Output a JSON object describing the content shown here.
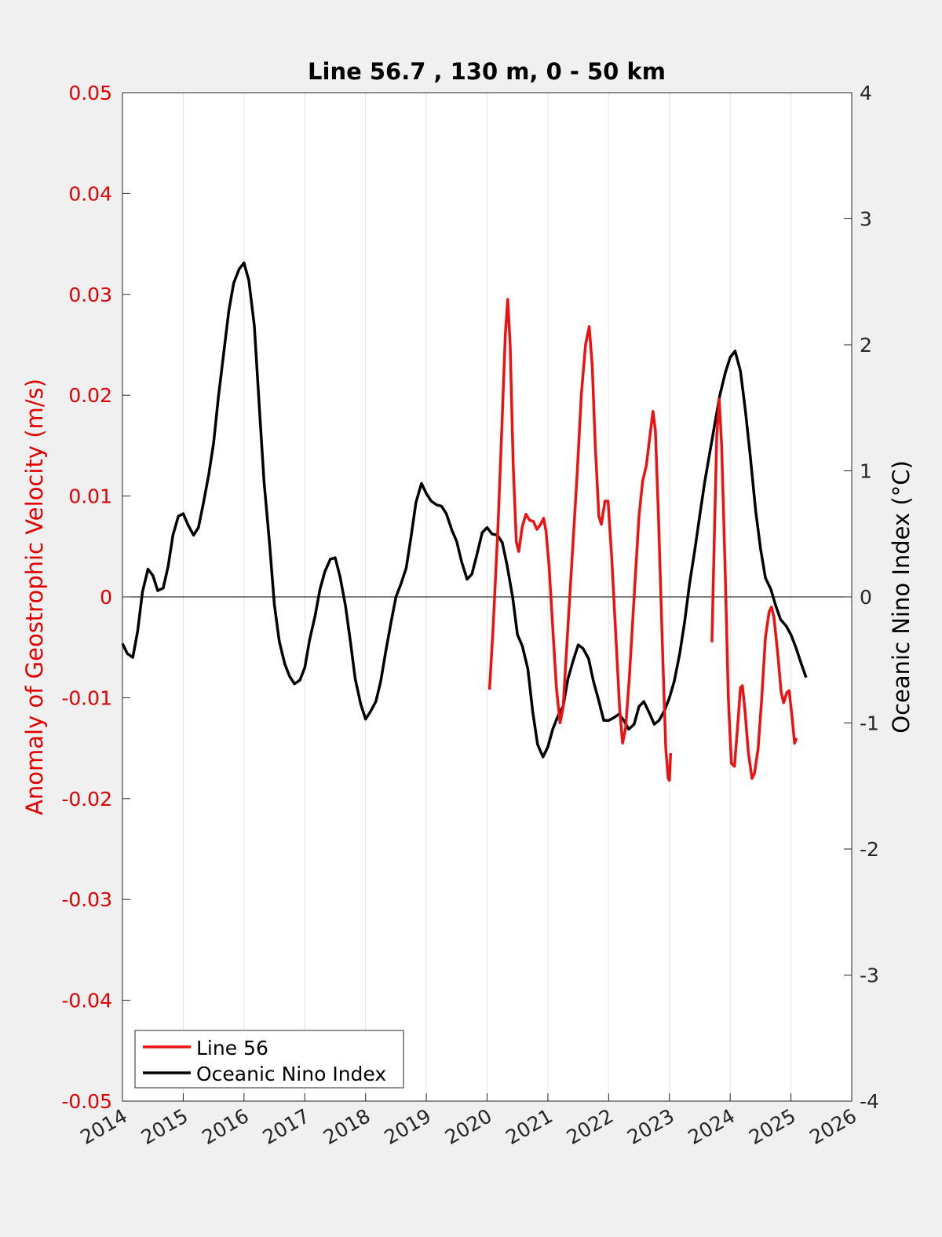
{
  "chart_data": {
    "type": "line",
    "title": "Line 56.7 , 130 m, 0 - 50 km",
    "xlabel": "",
    "ylabel_left": "Anomaly of Geostrophic Velocity (m/s)",
    "ylabel_right": "Oceanic Nino Index (°C)",
    "xlim": [
      2014,
      2026
    ],
    "ylim_left": [
      -0.05,
      0.05
    ],
    "ylim_right": [
      -4,
      4
    ],
    "x_ticks": [
      "2014",
      "2015",
      "2016",
      "2017",
      "2018",
      "2019",
      "2020",
      "2021",
      "2022",
      "2023",
      "2024",
      "2025",
      "2026"
    ],
    "y_left_ticks": [
      "0.05",
      "0.04",
      "0.03",
      "0.02",
      "0.01",
      "0",
      "-0.01",
      "-0.02",
      "-0.03",
      "-0.04",
      "-0.05"
    ],
    "y_right_ticks": [
      "4",
      "3",
      "2",
      "1",
      "0",
      "-1",
      "-2",
      "-3",
      "-4"
    ],
    "grid": "vertical",
    "legend_position": "bottom-left",
    "colors": {
      "left_axis": "#e00000",
      "line56": "#ee1111",
      "oni": "#000000",
      "background": "#f0f0f0",
      "plot": "#ffffff"
    },
    "series": [
      {
        "name": "Line 56",
        "axis": "left",
        "segments": [
          [
            [
              2020.04,
              -0.0092
            ],
            [
              2020.1,
              -0.003
            ],
            [
              2020.18,
              0.007
            ],
            [
              2020.25,
              0.018
            ],
            [
              2020.3,
              0.026
            ],
            [
              2020.34,
              0.0295
            ],
            [
              2020.38,
              0.025
            ],
            [
              2020.43,
              0.013
            ],
            [
              2020.48,
              0.0055
            ],
            [
              2020.52,
              0.0045
            ],
            [
              2020.58,
              0.007
            ],
            [
              2020.64,
              0.0082
            ],
            [
              2020.7,
              0.0076
            ],
            [
              2020.76,
              0.0075
            ],
            [
              2020.82,
              0.0067
            ],
            [
              2020.88,
              0.0072
            ],
            [
              2020.93,
              0.0078
            ],
            [
              2020.97,
              0.0065
            ],
            [
              2021.02,
              0.003
            ],
            [
              2021.08,
              -0.003
            ],
            [
              2021.14,
              -0.009
            ],
            [
              2021.2,
              -0.0125
            ],
            [
              2021.25,
              -0.011
            ],
            [
              2021.32,
              -0.004
            ],
            [
              2021.4,
              0.004
            ],
            [
              2021.48,
              0.012
            ],
            [
              2021.55,
              0.02
            ],
            [
              2021.62,
              0.025
            ],
            [
              2021.68,
              0.0268
            ],
            [
              2021.73,
              0.023
            ],
            [
              2021.78,
              0.015
            ],
            [
              2021.84,
              0.008
            ],
            [
              2021.88,
              0.0072
            ],
            [
              2021.94,
              0.0095
            ],
            [
              2021.99,
              0.0095
            ],
            [
              2022.05,
              0.004
            ],
            [
              2022.12,
              -0.004
            ],
            [
              2022.18,
              -0.011
            ],
            [
              2022.23,
              -0.0145
            ],
            [
              2022.28,
              -0.013
            ],
            [
              2022.34,
              -0.008
            ],
            [
              2022.42,
              0.0
            ],
            [
              2022.5,
              0.008
            ],
            [
              2022.56,
              0.0115
            ],
            [
              2022.62,
              0.013
            ],
            [
              2022.68,
              0.016
            ],
            [
              2022.73,
              0.0184
            ],
            [
              2022.77,
              0.0165
            ],
            [
              2022.82,
              0.008
            ],
            [
              2022.88,
              -0.004
            ],
            [
              2022.94,
              -0.015
            ],
            [
              2022.98,
              -0.018
            ],
            [
              2023.0,
              -0.0182
            ],
            [
              2023.02,
              -0.0155
            ]
          ],
          [
            [
              2023.7,
              -0.0045
            ],
            [
              2023.74,
              0.006
            ],
            [
              2023.78,
              0.016
            ],
            [
              2023.82,
              0.0196
            ],
            [
              2023.86,
              0.015
            ],
            [
              2023.92,
              0.002
            ],
            [
              2023.97,
              -0.01
            ],
            [
              2024.02,
              -0.0165
            ],
            [
              2024.07,
              -0.0168
            ],
            [
              2024.12,
              -0.013
            ],
            [
              2024.17,
              -0.009
            ],
            [
              2024.2,
              -0.0088
            ],
            [
              2024.24,
              -0.011
            ],
            [
              2024.3,
              -0.0155
            ],
            [
              2024.36,
              -0.018
            ],
            [
              2024.4,
              -0.0175
            ],
            [
              2024.46,
              -0.015
            ],
            [
              2024.52,
              -0.01
            ],
            [
              2024.58,
              -0.004
            ],
            [
              2024.64,
              -0.0015
            ],
            [
              2024.68,
              -0.001
            ],
            [
              2024.72,
              -0.002
            ],
            [
              2024.78,
              -0.0055
            ],
            [
              2024.84,
              -0.0095
            ],
            [
              2024.88,
              -0.0105
            ],
            [
              2024.93,
              -0.0095
            ],
            [
              2024.97,
              -0.0093
            ],
            [
              2025.02,
              -0.012
            ],
            [
              2025.06,
              -0.0145
            ],
            [
              2025.09,
              -0.014
            ]
          ]
        ]
      },
      {
        "name": "Oceanic Nino Index",
        "axis": "right",
        "points": [
          [
            2014.0,
            -0.37
          ],
          [
            2014.08,
            -0.45
          ],
          [
            2014.17,
            -0.48
          ],
          [
            2014.25,
            -0.27
          ],
          [
            2014.33,
            0.04
          ],
          [
            2014.42,
            0.22
          ],
          [
            2014.5,
            0.17
          ],
          [
            2014.58,
            0.05
          ],
          [
            2014.67,
            0.07
          ],
          [
            2014.75,
            0.24
          ],
          [
            2014.83,
            0.49
          ],
          [
            2014.92,
            0.64
          ],
          [
            2015.0,
            0.66
          ],
          [
            2015.08,
            0.57
          ],
          [
            2015.17,
            0.49
          ],
          [
            2015.25,
            0.55
          ],
          [
            2015.33,
            0.74
          ],
          [
            2015.42,
            0.97
          ],
          [
            2015.5,
            1.22
          ],
          [
            2015.58,
            1.59
          ],
          [
            2015.67,
            1.95
          ],
          [
            2015.75,
            2.27
          ],
          [
            2015.83,
            2.49
          ],
          [
            2015.92,
            2.6
          ],
          [
            2016.0,
            2.65
          ],
          [
            2016.08,
            2.51
          ],
          [
            2016.17,
            2.15
          ],
          [
            2016.25,
            1.52
          ],
          [
            2016.33,
            0.91
          ],
          [
            2016.42,
            0.43
          ],
          [
            2016.5,
            -0.06
          ],
          [
            2016.58,
            -0.35
          ],
          [
            2016.67,
            -0.53
          ],
          [
            2016.75,
            -0.63
          ],
          [
            2016.83,
            -0.69
          ],
          [
            2016.92,
            -0.66
          ],
          [
            2017.0,
            -0.56
          ],
          [
            2017.08,
            -0.34
          ],
          [
            2017.17,
            -0.15
          ],
          [
            2017.25,
            0.06
          ],
          [
            2017.33,
            0.2
          ],
          [
            2017.42,
            0.3
          ],
          [
            2017.5,
            0.31
          ],
          [
            2017.58,
            0.16
          ],
          [
            2017.67,
            -0.07
          ],
          [
            2017.75,
            -0.35
          ],
          [
            2017.83,
            -0.65
          ],
          [
            2017.92,
            -0.85
          ],
          [
            2018.0,
            -0.97
          ],
          [
            2018.08,
            -0.91
          ],
          [
            2018.17,
            -0.83
          ],
          [
            2018.25,
            -0.67
          ],
          [
            2018.33,
            -0.44
          ],
          [
            2018.42,
            -0.2
          ],
          [
            2018.5,
            0.0
          ],
          [
            2018.58,
            0.1
          ],
          [
            2018.67,
            0.23
          ],
          [
            2018.75,
            0.48
          ],
          [
            2018.83,
            0.75
          ],
          [
            2018.92,
            0.9
          ],
          [
            2019.0,
            0.82
          ],
          [
            2019.08,
            0.76
          ],
          [
            2019.17,
            0.73
          ],
          [
            2019.25,
            0.72
          ],
          [
            2019.33,
            0.66
          ],
          [
            2019.42,
            0.53
          ],
          [
            2019.5,
            0.44
          ],
          [
            2019.58,
            0.28
          ],
          [
            2019.67,
            0.14
          ],
          [
            2019.75,
            0.18
          ],
          [
            2019.83,
            0.33
          ],
          [
            2019.92,
            0.51
          ],
          [
            2020.0,
            0.55
          ],
          [
            2020.08,
            0.5
          ],
          [
            2020.17,
            0.49
          ],
          [
            2020.25,
            0.43
          ],
          [
            2020.33,
            0.25
          ],
          [
            2020.42,
            0.0
          ],
          [
            2020.5,
            -0.3
          ],
          [
            2020.58,
            -0.39
          ],
          [
            2020.67,
            -0.57
          ],
          [
            2020.75,
            -0.91
          ],
          [
            2020.83,
            -1.17
          ],
          [
            2020.92,
            -1.27
          ],
          [
            2021.0,
            -1.19
          ],
          [
            2021.08,
            -1.05
          ],
          [
            2021.17,
            -0.94
          ],
          [
            2021.25,
            -0.87
          ],
          [
            2021.33,
            -0.65
          ],
          [
            2021.42,
            -0.5
          ],
          [
            2021.5,
            -0.38
          ],
          [
            2021.58,
            -0.41
          ],
          [
            2021.67,
            -0.49
          ],
          [
            2021.75,
            -0.67
          ],
          [
            2021.83,
            -0.81
          ],
          [
            2021.92,
            -0.98
          ],
          [
            2022.0,
            -0.98
          ],
          [
            2022.08,
            -0.96
          ],
          [
            2022.17,
            -0.93
          ],
          [
            2022.25,
            -0.98
          ],
          [
            2022.33,
            -1.05
          ],
          [
            2022.42,
            -1.01
          ],
          [
            2022.5,
            -0.87
          ],
          [
            2022.58,
            -0.83
          ],
          [
            2022.67,
            -0.92
          ],
          [
            2022.75,
            -1.01
          ],
          [
            2022.83,
            -0.98
          ],
          [
            2022.92,
            -0.9
          ],
          [
            2023.0,
            -0.8
          ],
          [
            2023.08,
            -0.67
          ],
          [
            2023.17,
            -0.45
          ],
          [
            2023.25,
            -0.2
          ],
          [
            2023.33,
            0.1
          ],
          [
            2023.42,
            0.38
          ],
          [
            2023.5,
            0.65
          ],
          [
            2023.58,
            0.91
          ],
          [
            2023.67,
            1.16
          ],
          [
            2023.75,
            1.38
          ],
          [
            2023.83,
            1.6
          ],
          [
            2023.92,
            1.78
          ],
          [
            2024.0,
            1.9
          ],
          [
            2024.08,
            1.95
          ],
          [
            2024.17,
            1.79
          ],
          [
            2024.25,
            1.48
          ],
          [
            2024.33,
            1.12
          ],
          [
            2024.42,
            0.68
          ],
          [
            2024.5,
            0.38
          ],
          [
            2024.58,
            0.15
          ],
          [
            2024.67,
            0.06
          ],
          [
            2024.75,
            -0.07
          ],
          [
            2024.83,
            -0.18
          ],
          [
            2024.92,
            -0.23
          ],
          [
            2025.0,
            -0.3
          ],
          [
            2025.08,
            -0.4
          ],
          [
            2025.17,
            -0.53
          ],
          [
            2025.25,
            -0.64
          ]
        ]
      }
    ]
  }
}
